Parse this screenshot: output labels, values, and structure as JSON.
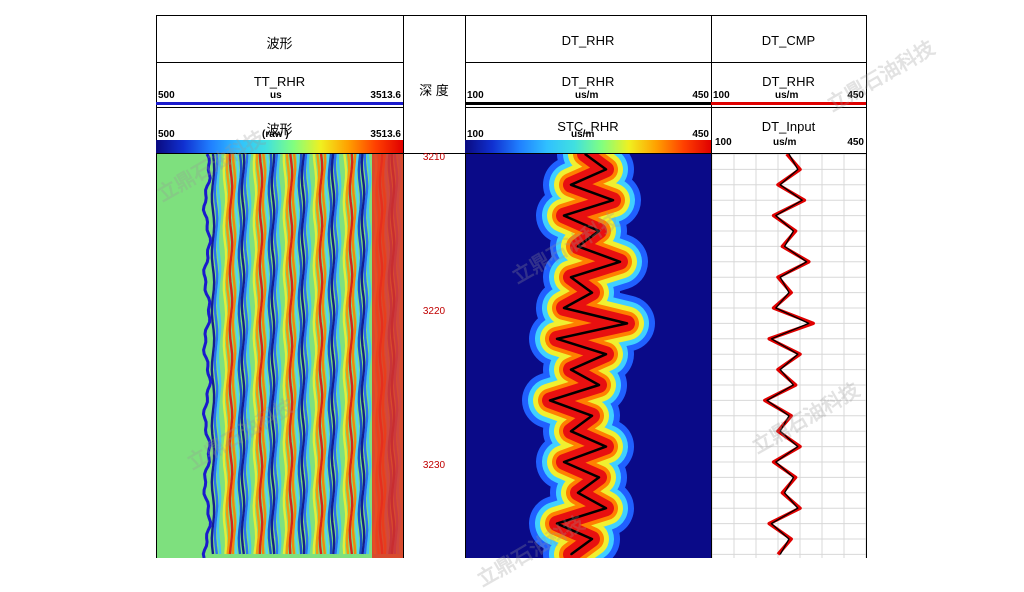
{
  "tracks": {
    "waveform": {
      "title": "波形",
      "curve": {
        "name": "TT_RHR",
        "unit": "us",
        "min": "500",
        "max": "3513.6",
        "color": "#1a1acc"
      },
      "image": {
        "name": "波形",
        "unit": "(raw )",
        "min": "500",
        "max": "3513.6"
      }
    },
    "depth": {
      "title": "深 度",
      "ticks": [
        "3210",
        "3220",
        "3230"
      ]
    },
    "dt_rhr": {
      "title": "DT_RHR",
      "curve": {
        "name": "DT_RHR",
        "unit": "us/m",
        "min": "100",
        "max": "450",
        "color": "#000000"
      },
      "image": {
        "name": "STC_RHR",
        "unit": "us/m",
        "min": "100",
        "max": "450"
      }
    },
    "dt_cmp": {
      "title": "DT_CMP",
      "curve1": {
        "name": "DT_RHR",
        "unit": "us/m",
        "min": "100",
        "max": "450",
        "color": "#e00000"
      },
      "curve2": {
        "name": "DT_Input",
        "unit": "us/m",
        "min": "100",
        "max": "450",
        "color": "#000000"
      }
    }
  },
  "watermark": "立鼎石油科技",
  "chart_data": {
    "type": "line",
    "y_axis": "depth",
    "ylim": [
      3210,
      3236
    ],
    "xlim": [
      100,
      450
    ],
    "series": [
      {
        "name": "DT_RHR",
        "depth": [
          3210,
          3211,
          3212,
          3213,
          3214,
          3215,
          3216,
          3217,
          3218,
          3219,
          3220,
          3221,
          3222,
          3223,
          3224,
          3225,
          3226,
          3227,
          3228,
          3229,
          3230,
          3231,
          3232,
          3233,
          3234,
          3235,
          3236
        ],
        "values": [
          270,
          300,
          250,
          310,
          240,
          290,
          260,
          320,
          250,
          280,
          240,
          330,
          230,
          300,
          250,
          290,
          220,
          280,
          250,
          300,
          240,
          290,
          260,
          300,
          230,
          280,
          250
        ]
      },
      {
        "name": "DT_Input",
        "depth": [
          3210,
          3211,
          3212,
          3213,
          3214,
          3215,
          3216,
          3217,
          3218,
          3219,
          3220,
          3221,
          3222,
          3223,
          3224,
          3225,
          3226,
          3227,
          3228,
          3229,
          3230,
          3231,
          3232,
          3233,
          3234,
          3235,
          3236
        ],
        "values": [
          275,
          295,
          255,
          305,
          245,
          285,
          265,
          315,
          255,
          275,
          245,
          320,
          235,
          295,
          255,
          285,
          225,
          275,
          255,
          295,
          245,
          285,
          265,
          295,
          235,
          275,
          255
        ]
      }
    ]
  }
}
